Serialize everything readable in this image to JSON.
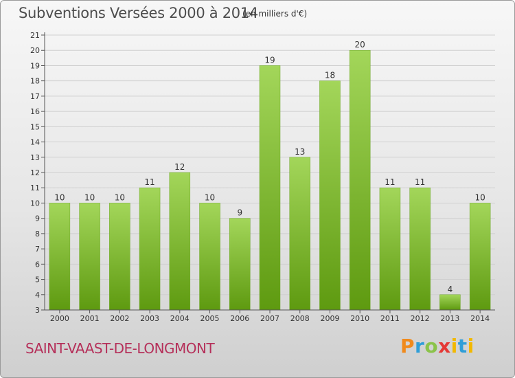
{
  "header": {
    "title": "Subventions Versées 2000 à 2014",
    "unit": "(en milliers d'€)"
  },
  "footer": {
    "commune": "SAINT-VAAST-DE-LONGMONT",
    "logo": {
      "p": "P",
      "r": "r",
      "o": "o",
      "x": "x",
      "i": "i",
      "t": "t",
      "i2": "i"
    }
  },
  "colors": {
    "bar_light": "#a3d65a",
    "bar_dark": "#5e9a10",
    "grid": "#cfcfcf",
    "title": "#4d4d4d",
    "commune": "#b5305a"
  },
  "chart_data": {
    "type": "bar",
    "title": "Subventions Versées 2000 à 2014",
    "xlabel": "",
    "ylabel": "",
    "categories": [
      "2000",
      "2001",
      "2002",
      "2003",
      "2004",
      "2005",
      "2006",
      "2007",
      "2008",
      "2009",
      "2010",
      "2011",
      "2012",
      "2013",
      "2014"
    ],
    "values": [
      10,
      10,
      10,
      11,
      12,
      10,
      9,
      19,
      13,
      18,
      20,
      11,
      11,
      4,
      10
    ],
    "ylim": [
      3,
      21
    ],
    "yticks": [
      3,
      4,
      5,
      6,
      7,
      8,
      9,
      10,
      11,
      12,
      13,
      14,
      15,
      16,
      17,
      18,
      19,
      20,
      21
    ],
    "grid": true,
    "legend": "none"
  }
}
